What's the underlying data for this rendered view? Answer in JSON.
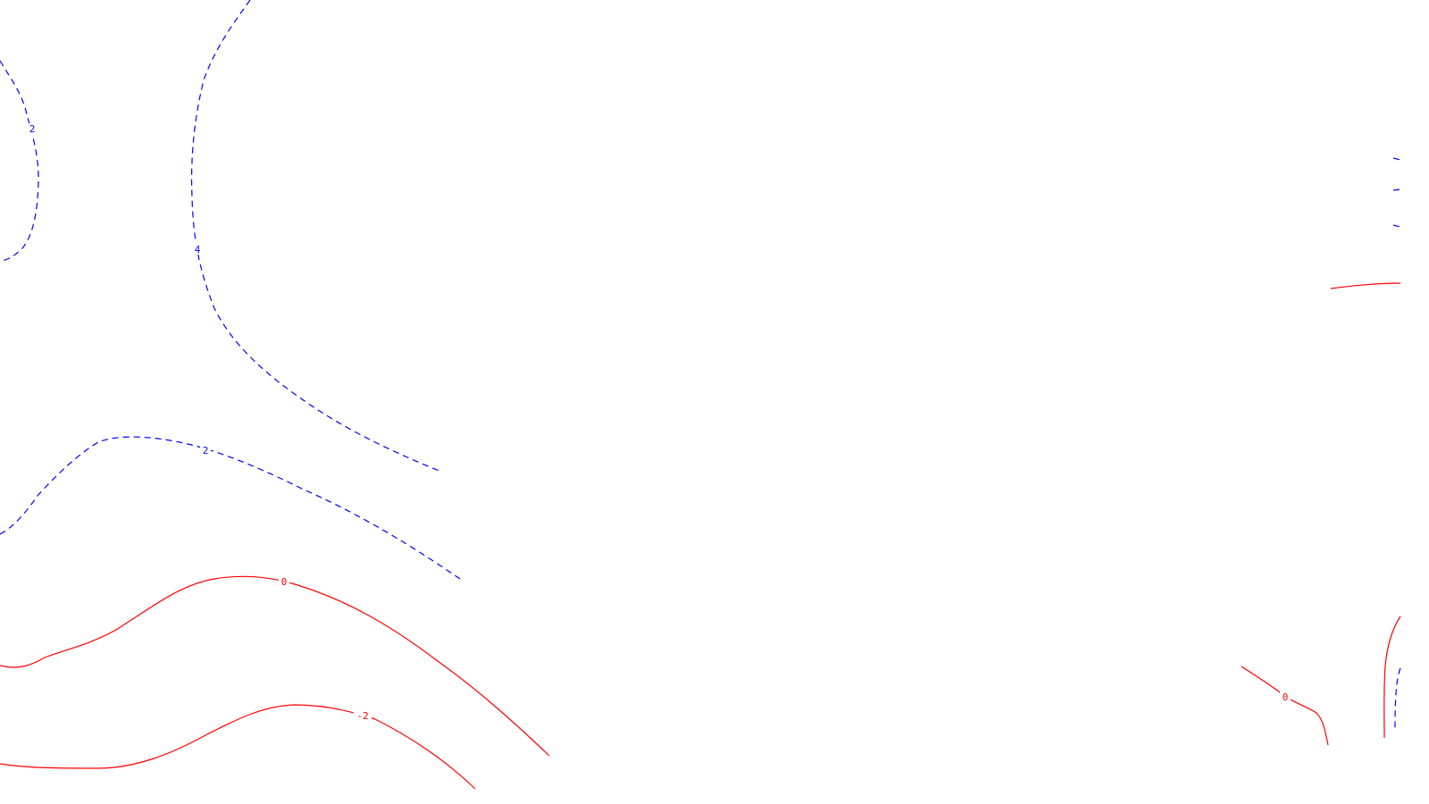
{
  "colors": {
    "background": "#ffffff",
    "positive": "#0000ff",
    "nonpositive": "#ff0000"
  },
  "contours": [
    {
      "id": "contour-2-left-bulge",
      "level": 2,
      "label": "2",
      "style": "dashed",
      "color": "#0000ff"
    },
    {
      "id": "contour-4-large-arc",
      "level": 4,
      "label": "4",
      "style": "dashed",
      "color": "#0000ff"
    },
    {
      "id": "contour-2-mid-line",
      "level": 2,
      "label": "2",
      "style": "dashed",
      "color": "#0000ff"
    },
    {
      "id": "contour-0-lower",
      "level": 0,
      "label": "0",
      "style": "solid",
      "color": "#ff0000"
    },
    {
      "id": "contour-neg2-bottom",
      "level": -2,
      "label": "-2",
      "style": "solid",
      "color": "#ff0000"
    },
    {
      "id": "contour-0-right-short",
      "level": 0,
      "label": "0",
      "style": "solid",
      "color": "#ff0000"
    },
    {
      "id": "contour-right-edge-red-top",
      "level": null,
      "label": null,
      "style": "solid",
      "color": "#ff0000"
    },
    {
      "id": "contour-right-edge-red-bottom",
      "level": null,
      "label": null,
      "style": "solid",
      "color": "#ff0000"
    },
    {
      "id": "contour-right-edge-blue-stubs",
      "level": null,
      "label": null,
      "style": "dashed",
      "color": "#0000ff"
    },
    {
      "id": "contour-right-edge-blue-bottom",
      "level": null,
      "label": null,
      "style": "dashed",
      "color": "#0000ff"
    }
  ]
}
